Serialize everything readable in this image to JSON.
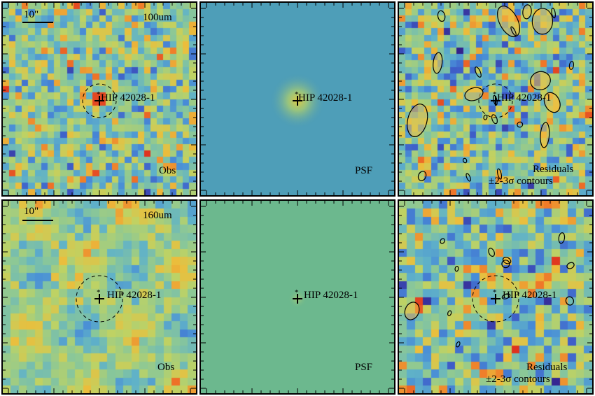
{
  "scale_bar_label": "10\"",
  "panels": [
    {
      "id": "p100-obs",
      "band": "100um",
      "kind": "obs",
      "corner_label": "Obs",
      "source": "HIP 42028-1",
      "circle": true,
      "seed": 11,
      "palette": "cool"
    },
    {
      "id": "p100-psf",
      "band": "",
      "kind": "psf",
      "corner_label": "PSF",
      "source": "HIP 42028-1",
      "circle": false,
      "seed": 0,
      "palette": "blue"
    },
    {
      "id": "p100-res",
      "band": "",
      "kind": "res",
      "corner_label": "Residuals",
      "corner_label2": "±2-3σ contours",
      "source": "HIP 42028-1",
      "circle": true,
      "seed": 37,
      "palette": "cool"
    },
    {
      "id": "p160-obs",
      "band": "160um",
      "kind": "obs",
      "corner_label": "Obs",
      "source": "HIP 42028-1",
      "circle": true,
      "seed": 53,
      "palette": "warm"
    },
    {
      "id": "p160-psf",
      "band": "",
      "kind": "psf",
      "corner_label": "PSF",
      "source": "HIP 42028-1",
      "circle": false,
      "seed": 0,
      "palette": "green"
    },
    {
      "id": "p160-res",
      "band": "",
      "kind": "res",
      "corner_label": "Residuals",
      "corner_label2": "±2-3σ contours",
      "source": "HIP 42028-1",
      "circle": true,
      "seed": 71,
      "palette": "cool"
    }
  ],
  "colors": {
    "frame": "#000000",
    "psf_blue": "#4e9eb8",
    "psf_green": "#6cb88e"
  }
}
